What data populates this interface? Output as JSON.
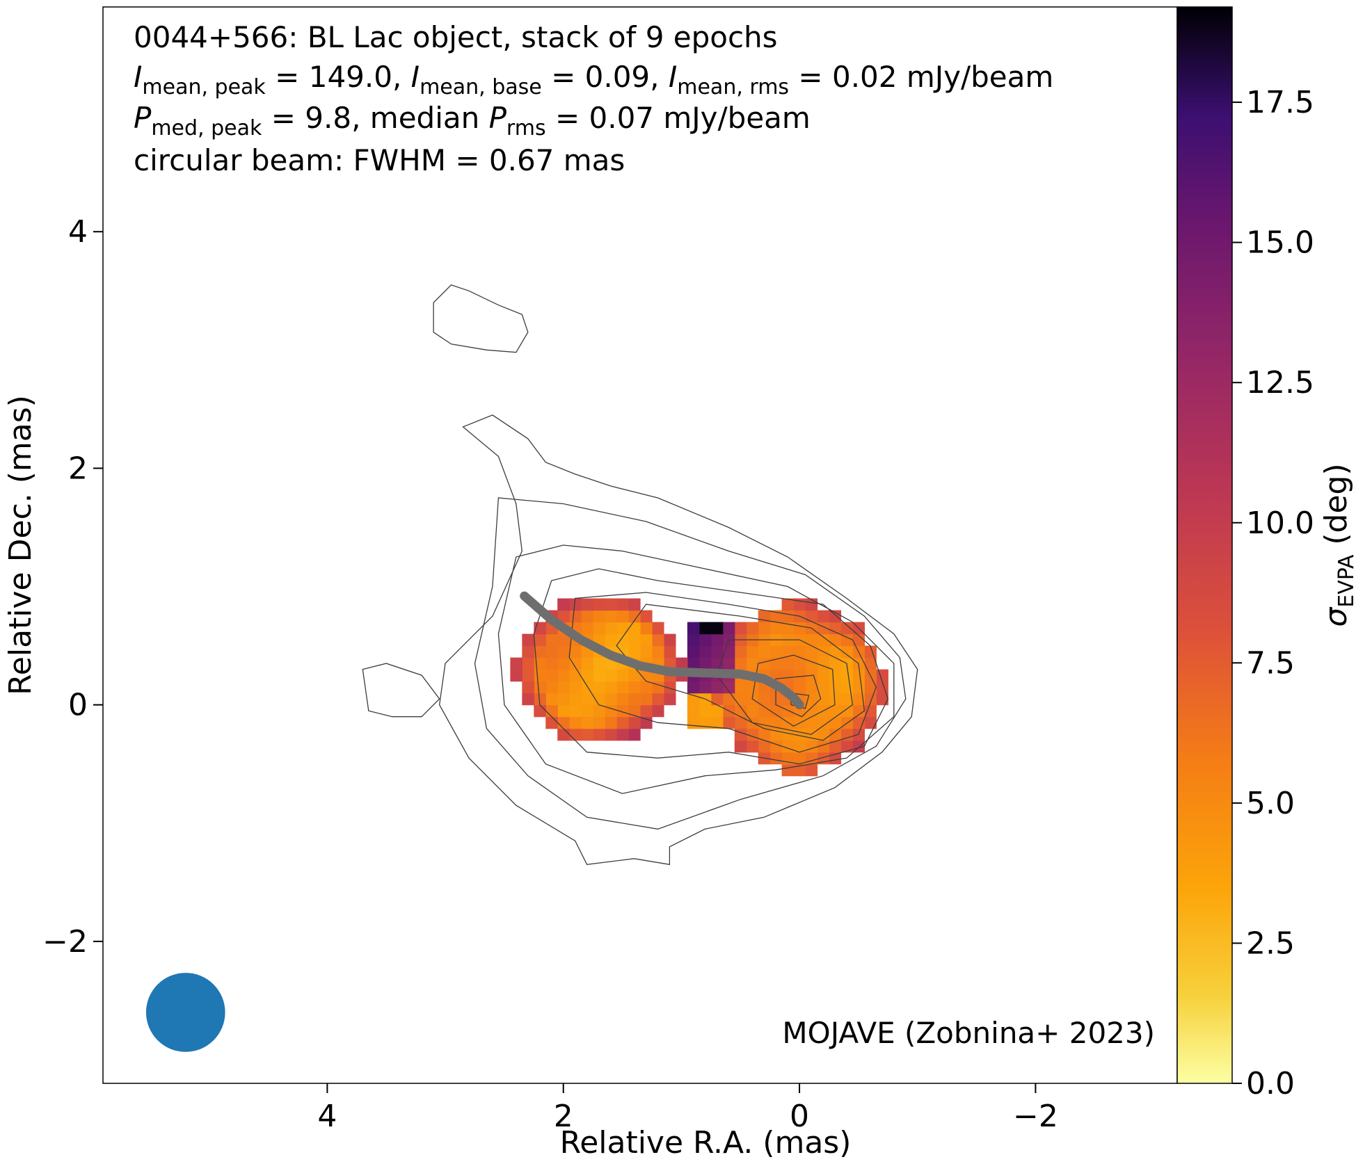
{
  "chart_data": {
    "type": "heatmap",
    "title_lines": [
      "0044+566: BL Lac object, stack of 9 epochs",
      "I_mean,peak = 149.0, I_mean,base = 0.09, I_mean,rms = 0.02 mJy/beam",
      "P_med,peak = 9.8, median P_rms = 0.07 mJy/beam",
      "circular beam: FWHM = 0.67 mas"
    ],
    "annotation": {
      "text_i_mean_peak": "149.0",
      "text_i_mean_base": "0.09",
      "text_i_mean_rms": "0.02",
      "text_p_med_peak": "9.8",
      "text_p_rms": "0.07",
      "unit": "mJy/beam",
      "source_line": "0044+566: BL Lac object, stack of 9 epochs",
      "beam_line": "circular beam: FWHM = 0.67 mas"
    },
    "credit": "MOJAVE (Zobnina+ 2023)",
    "xlabel": "Relative R.A. (mas)",
    "ylabel": "Relative Dec. (mas)",
    "xlim": [
      5.9,
      -3.2
    ],
    "ylim": [
      -3.2,
      5.9
    ],
    "xticks": [
      4,
      2,
      0,
      -2
    ],
    "xtick_labels": [
      "4",
      "2",
      "0",
      "−2"
    ],
    "yticks": [
      4,
      2,
      0,
      -2
    ],
    "ytick_labels": [
      "4",
      "2",
      "0",
      "−2"
    ],
    "colorbar": {
      "label": "σ_EVPA (deg)",
      "range": [
        0,
        19.2
      ],
      "ticks": [
        0,
        2.5,
        5,
        7.5,
        10,
        12.5,
        15,
        17.5
      ],
      "tick_labels": [
        "0.0",
        "2.5",
        "5.0",
        "7.5",
        "10.0",
        "12.5",
        "15.0",
        "17.5"
      ],
      "colormap": "inferno_r"
    },
    "beam": {
      "fwhm_mas": 0.67,
      "center_mas": [
        5.2,
        -2.6
      ],
      "color": "#1f77b4"
    },
    "ridgeline": {
      "color": "#6e6e6e",
      "points": [
        [
          2.33,
          0.92
        ],
        [
          2.1,
          0.72
        ],
        [
          1.85,
          0.55
        ],
        [
          1.6,
          0.42
        ],
        [
          1.35,
          0.33
        ],
        [
          1.1,
          0.28
        ],
        [
          0.8,
          0.27
        ],
        [
          0.5,
          0.26
        ],
        [
          0.3,
          0.22
        ],
        [
          0.15,
          0.14
        ],
        [
          0.05,
          0.06
        ],
        [
          0.0,
          0.0
        ]
      ]
    },
    "contours": [
      {
        "level": 1,
        "points": [
          [
            2.85,
            2.35
          ],
          [
            2.55,
            2.1
          ],
          [
            2.4,
            1.7
          ],
          [
            2.35,
            1.3
          ],
          [
            2.6,
            0.75
          ],
          [
            3.0,
            0.35
          ],
          [
            3.05,
            0.0
          ],
          [
            2.8,
            -0.45
          ],
          [
            2.4,
            -0.85
          ],
          [
            1.9,
            -1.15
          ],
          [
            1.8,
            -1.35
          ],
          [
            1.4,
            -1.3
          ],
          [
            1.1,
            -1.35
          ],
          [
            1.1,
            -1.2
          ],
          [
            0.8,
            -1.05
          ],
          [
            0.3,
            -0.95
          ],
          [
            -0.3,
            -0.7
          ],
          [
            -0.7,
            -0.4
          ],
          [
            -0.95,
            -0.1
          ],
          [
            -1.0,
            0.3
          ],
          [
            -0.8,
            0.6
          ],
          [
            -0.4,
            0.9
          ],
          [
            0.1,
            1.25
          ],
          [
            0.6,
            1.5
          ],
          [
            1.2,
            1.75
          ],
          [
            1.6,
            1.85
          ],
          [
            1.9,
            1.95
          ],
          [
            2.15,
            2.05
          ],
          [
            2.3,
            2.25
          ],
          [
            2.6,
            2.45
          ],
          [
            2.85,
            2.35
          ]
        ]
      },
      {
        "level": 2,
        "points": [
          [
            2.55,
            1.75
          ],
          [
            2.6,
            1.0
          ],
          [
            2.75,
            0.35
          ],
          [
            2.65,
            -0.2
          ],
          [
            2.3,
            -0.6
          ],
          [
            1.8,
            -0.95
          ],
          [
            1.2,
            -1.05
          ],
          [
            0.5,
            -0.8
          ],
          [
            -0.2,
            -0.6
          ],
          [
            -0.65,
            -0.35
          ],
          [
            -0.9,
            0.05
          ],
          [
            -0.85,
            0.4
          ],
          [
            -0.55,
            0.75
          ],
          [
            -0.05,
            1.1
          ],
          [
            0.6,
            1.3
          ],
          [
            1.3,
            1.55
          ],
          [
            2.0,
            1.7
          ],
          [
            2.55,
            1.75
          ]
        ]
      },
      {
        "level": 3,
        "points": [
          [
            2.4,
            1.25
          ],
          [
            2.55,
            0.6
          ],
          [
            2.5,
            0.0
          ],
          [
            2.15,
            -0.5
          ],
          [
            1.5,
            -0.75
          ],
          [
            0.8,
            -0.6
          ],
          [
            0.2,
            -0.55
          ],
          [
            -0.4,
            -0.45
          ],
          [
            -0.8,
            -0.1
          ],
          [
            -0.8,
            0.35
          ],
          [
            -0.45,
            0.7
          ],
          [
            0.1,
            1.0
          ],
          [
            0.8,
            1.15
          ],
          [
            1.5,
            1.3
          ],
          [
            2.0,
            1.35
          ],
          [
            2.4,
            1.25
          ]
        ]
      },
      {
        "level": 4,
        "points": [
          [
            2.1,
            1.05
          ],
          [
            2.25,
            0.6
          ],
          [
            2.2,
            0.0
          ],
          [
            1.8,
            -0.4
          ],
          [
            1.2,
            -0.45
          ],
          [
            0.6,
            -0.4
          ],
          [
            0.0,
            -0.5
          ],
          [
            -0.55,
            -0.35
          ],
          [
            -0.75,
            0.05
          ],
          [
            -0.6,
            0.5
          ],
          [
            -0.2,
            0.85
          ],
          [
            0.5,
            0.95
          ],
          [
            1.2,
            1.05
          ],
          [
            1.7,
            1.15
          ],
          [
            2.1,
            1.05
          ]
        ]
      },
      {
        "level": 5,
        "points": [
          [
            1.9,
            0.9
          ],
          [
            1.95,
            0.4
          ],
          [
            1.7,
            0.0
          ],
          [
            1.2,
            -0.15
          ],
          [
            0.6,
            -0.2
          ],
          [
            0.0,
            -0.4
          ],
          [
            -0.5,
            -0.25
          ],
          [
            -0.65,
            0.15
          ],
          [
            -0.45,
            0.55
          ],
          [
            0.0,
            0.75
          ],
          [
            0.6,
            0.85
          ],
          [
            1.3,
            0.95
          ],
          [
            1.9,
            0.9
          ]
        ]
      },
      {
        "level": 6,
        "points": [
          [
            1.3,
            0.85
          ],
          [
            1.55,
            0.5
          ],
          [
            1.3,
            0.2
          ],
          [
            0.8,
            0.05
          ],
          [
            0.3,
            -0.2
          ],
          [
            -0.2,
            -0.3
          ],
          [
            -0.55,
            -0.05
          ],
          [
            -0.5,
            0.35
          ],
          [
            -0.1,
            0.65
          ],
          [
            0.5,
            0.75
          ],
          [
            1.3,
            0.85
          ]
        ]
      },
      {
        "level": 7,
        "points": [
          [
            0.6,
            0.55
          ],
          [
            0.7,
            0.25
          ],
          [
            0.4,
            -0.15
          ],
          [
            -0.1,
            -0.25
          ],
          [
            -0.45,
            0.0
          ],
          [
            -0.4,
            0.35
          ],
          [
            0.0,
            0.55
          ],
          [
            0.6,
            0.55
          ]
        ]
      },
      {
        "level": 8,
        "points": [
          [
            0.35,
            0.35
          ],
          [
            0.4,
            0.05
          ],
          [
            0.05,
            -0.18
          ],
          [
            -0.3,
            0.0
          ],
          [
            -0.28,
            0.3
          ],
          [
            0.05,
            0.42
          ],
          [
            0.35,
            0.35
          ]
        ]
      },
      {
        "level": 9,
        "points": [
          [
            0.2,
            0.22
          ],
          [
            0.2,
            0.0
          ],
          [
            -0.02,
            -0.1
          ],
          [
            -0.18,
            0.05
          ],
          [
            -0.12,
            0.25
          ],
          [
            0.2,
            0.22
          ]
        ]
      },
      {
        "level": 10,
        "points": [
          [
            0.08,
            0.1
          ],
          [
            0.07,
            0.0
          ],
          [
            -0.05,
            -0.03
          ],
          [
            -0.08,
            0.08
          ],
          [
            0.08,
            0.1
          ]
        ]
      },
      {
        "level": 1,
        "points": [
          [
            3.1,
            3.4
          ],
          [
            3.1,
            3.15
          ],
          [
            2.95,
            3.05
          ],
          [
            2.65,
            3.0
          ],
          [
            2.4,
            2.98
          ],
          [
            2.3,
            3.15
          ],
          [
            2.35,
            3.3
          ],
          [
            2.55,
            3.38
          ],
          [
            2.8,
            3.5
          ],
          [
            2.95,
            3.55
          ],
          [
            3.1,
            3.4
          ]
        ]
      },
      {
        "level": 1,
        "points": [
          [
            3.7,
            0.3
          ],
          [
            3.5,
            0.35
          ],
          [
            3.2,
            0.25
          ],
          [
            3.05,
            0.05
          ],
          [
            3.2,
            -0.1
          ],
          [
            3.45,
            -0.1
          ],
          [
            3.65,
            -0.05
          ],
          [
            3.7,
            0.3
          ]
        ]
      }
    ]
  }
}
